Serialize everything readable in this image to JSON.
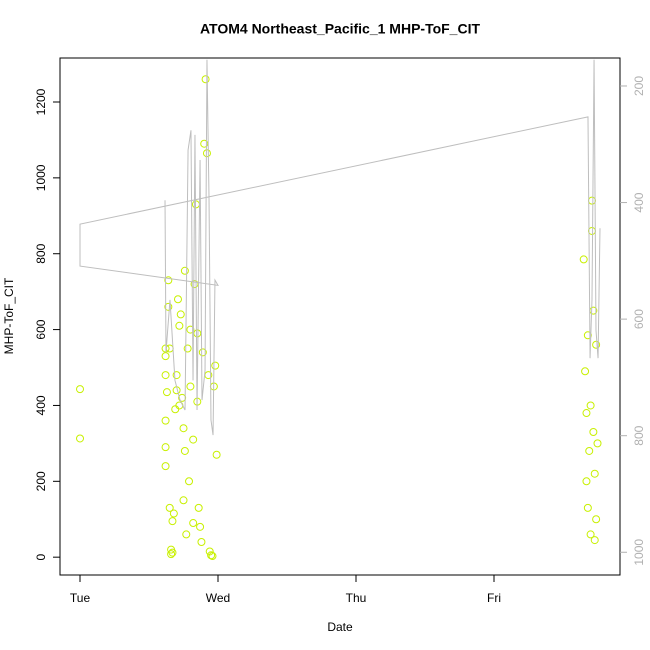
{
  "chart_data": {
    "type": "scatter",
    "title": "ATOM4 Northeast_Pacific_1 MHP-ToF_CIT",
    "x_label": "Date",
    "y_label": "MHP-ToF_CIT",
    "xlim": [
      -0.145,
      3.913
    ],
    "xticks": [
      {
        "value": 0,
        "label": "Tue"
      },
      {
        "value": 1,
        "label": "Wed"
      },
      {
        "value": 2,
        "label": "Thu"
      },
      {
        "value": 3,
        "label": "Fri"
      }
    ],
    "ylim": [
      -47,
      1316
    ],
    "yticks": [
      0,
      200,
      400,
      600,
      800,
      1000,
      1200
    ],
    "y2lim": [
      1039,
      152
    ],
    "y2ticks": [
      200,
      400,
      600,
      800,
      1000
    ],
    "series": [
      {
        "style": "points",
        "color": "#c8f000",
        "x": [
          0,
          0,
          0.62,
          0.62,
          0.62,
          0.62,
          0.62,
          0.62,
          0.63,
          0.64,
          0.64,
          0.65,
          0.65,
          0.66,
          0.66,
          0.67,
          0.67,
          0.68,
          0.69,
          0.7,
          0.7,
          0.71,
          0.72,
          0.72,
          0.73,
          0.74,
          0.75,
          0.75,
          0.76,
          0.76,
          0.77,
          0.78,
          0.79,
          0.8,
          0.8,
          0.82,
          0.82,
          0.83,
          0.84,
          0.85,
          0.85,
          0.86,
          0.87,
          0.88,
          0.89,
          0.9,
          0.91,
          0.92,
          0.93,
          0.94,
          0.95,
          0.96,
          0.97,
          0.98,
          0.99,
          3.65,
          3.66,
          3.67,
          3.67,
          3.68,
          3.68,
          3.69,
          3.7,
          3.7,
          3.71,
          3.71,
          3.72,
          3.72,
          3.73,
          3.73,
          3.74,
          3.74,
          3.75
        ],
        "values": [
          443,
          313,
          550,
          530,
          480,
          360,
          290,
          240,
          435,
          730,
          660,
          550,
          130,
          20,
          8,
          12,
          95,
          115,
          390,
          480,
          440,
          680,
          610,
          400,
          640,
          420,
          340,
          150,
          280,
          755,
          60,
          550,
          200,
          600,
          450,
          310,
          90,
          720,
          930,
          410,
          590,
          130,
          80,
          40,
          540,
          1090,
          1260,
          1065,
          480,
          15,
          5,
          3,
          450,
          505,
          270,
          785,
          490,
          380,
          200,
          585,
          130,
          280,
          400,
          60,
          940,
          860,
          650,
          330,
          220,
          45,
          100,
          560,
          300
        ]
      },
      {
        "style": "line",
        "color": "#bebebe",
        "axis": "y2",
        "x": [
          0.616,
          0.623,
          0.652,
          0.688,
          0.725,
          0.761,
          0.783,
          0.804,
          0.819,
          0.833,
          0.848,
          0.87,
          0.884,
          0.906,
          0.92,
          0.935,
          0.949,
          0.964,
          0.978,
          1.0,
          0,
          0,
          3.681,
          3.696,
          3.71,
          3.725,
          3.739,
          3.754,
          3.768
        ],
        "values": [
          396,
          657,
          567,
          705,
          739,
          756,
          310,
          276,
          705,
          284,
          756,
          327,
          739,
          688,
          155,
          396,
          773,
          799,
          533,
          542,
          509,
          437,
          253,
          667,
          567,
          155,
          619,
          667,
          444
        ]
      }
    ]
  }
}
